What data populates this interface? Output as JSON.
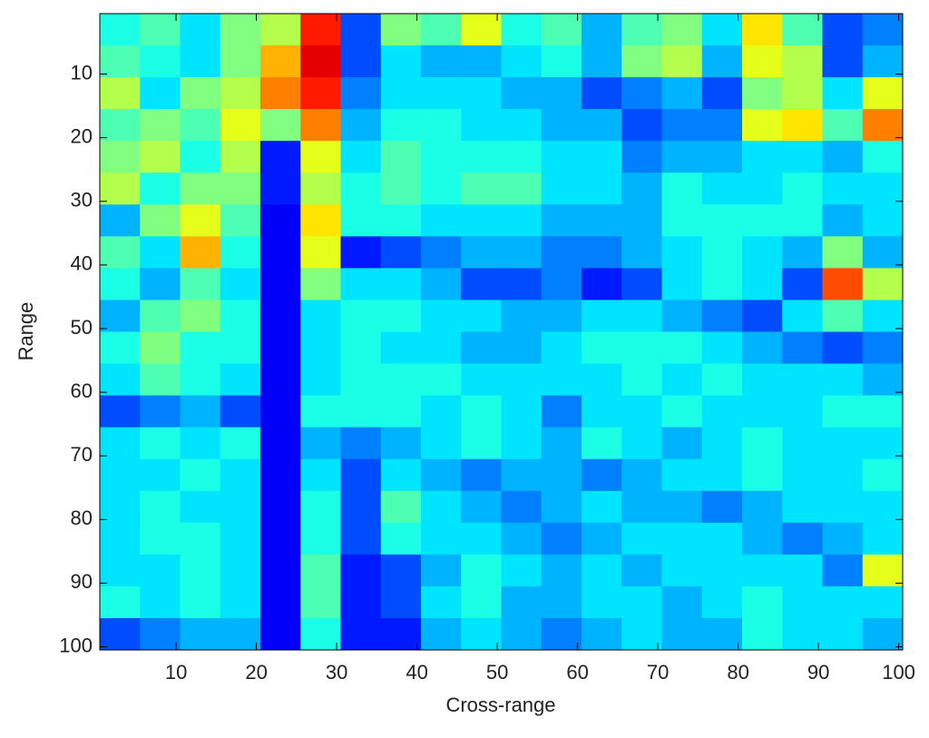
{
  "chart_data": {
    "type": "heatmap",
    "x_label": "Cross-range",
    "y_label": "Range",
    "colormap": "jet",
    "clim": [
      0,
      1
    ],
    "y_reversed": true,
    "xlim": [
      0.5,
      100.5
    ],
    "ylim": [
      0.5,
      100.5
    ],
    "xticks": [
      10,
      20,
      30,
      40,
      50,
      60,
      70,
      80,
      90,
      100
    ],
    "yticks": [
      10,
      20,
      30,
      40,
      50,
      60,
      70,
      80,
      90,
      100
    ],
    "x": [
      3,
      8,
      13,
      18,
      23,
      28,
      33,
      38,
      43,
      48,
      53,
      58,
      63,
      68,
      73,
      78,
      83,
      88,
      93,
      98
    ],
    "y": [
      3,
      8,
      13,
      18,
      23,
      28,
      33,
      38,
      43,
      48,
      53,
      58,
      63,
      68,
      73,
      78,
      83,
      88,
      93,
      98
    ],
    "values": [
      [
        0.4,
        0.45,
        0.35,
        0.5,
        0.55,
        0.85,
        0.2,
        0.5,
        0.45,
        0.6,
        0.4,
        0.45,
        0.3,
        0.45,
        0.5,
        0.35,
        0.65,
        0.45,
        0.2,
        0.25
      ],
      [
        0.45,
        0.4,
        0.35,
        0.5,
        0.7,
        0.9,
        0.2,
        0.35,
        0.3,
        0.3,
        0.35,
        0.4,
        0.3,
        0.5,
        0.55,
        0.3,
        0.6,
        0.55,
        0.2,
        0.3
      ],
      [
        0.55,
        0.35,
        0.5,
        0.55,
        0.75,
        0.85,
        0.25,
        0.35,
        0.35,
        0.35,
        0.3,
        0.3,
        0.2,
        0.25,
        0.3,
        0.2,
        0.5,
        0.55,
        0.35,
        0.6
      ],
      [
        0.45,
        0.5,
        0.45,
        0.6,
        0.5,
        0.75,
        0.3,
        0.4,
        0.4,
        0.35,
        0.35,
        0.3,
        0.3,
        0.2,
        0.25,
        0.25,
        0.6,
        0.65,
        0.45,
        0.75
      ],
      [
        0.5,
        0.55,
        0.4,
        0.55,
        0.15,
        0.6,
        0.35,
        0.45,
        0.4,
        0.4,
        0.4,
        0.35,
        0.35,
        0.25,
        0.3,
        0.3,
        0.35,
        0.35,
        0.3,
        0.4
      ],
      [
        0.55,
        0.4,
        0.5,
        0.5,
        0.15,
        0.55,
        0.4,
        0.45,
        0.4,
        0.45,
        0.45,
        0.35,
        0.35,
        0.3,
        0.4,
        0.35,
        0.35,
        0.4,
        0.35,
        0.35
      ],
      [
        0.3,
        0.5,
        0.6,
        0.45,
        0.12,
        0.65,
        0.4,
        0.4,
        0.35,
        0.35,
        0.35,
        0.3,
        0.3,
        0.3,
        0.4,
        0.4,
        0.4,
        0.4,
        0.3,
        0.35
      ],
      [
        0.45,
        0.35,
        0.7,
        0.4,
        0.12,
        0.6,
        0.15,
        0.2,
        0.25,
        0.3,
        0.3,
        0.25,
        0.25,
        0.3,
        0.35,
        0.4,
        0.35,
        0.3,
        0.5,
        0.3
      ],
      [
        0.4,
        0.3,
        0.45,
        0.35,
        0.12,
        0.5,
        0.35,
        0.35,
        0.3,
        0.2,
        0.2,
        0.25,
        0.15,
        0.2,
        0.35,
        0.4,
        0.35,
        0.2,
        0.8,
        0.55
      ],
      [
        0.3,
        0.45,
        0.5,
        0.4,
        0.12,
        0.35,
        0.4,
        0.4,
        0.35,
        0.35,
        0.3,
        0.3,
        0.35,
        0.35,
        0.3,
        0.25,
        0.2,
        0.35,
        0.45,
        0.35
      ],
      [
        0.4,
        0.5,
        0.4,
        0.4,
        0.12,
        0.35,
        0.4,
        0.35,
        0.35,
        0.3,
        0.3,
        0.35,
        0.4,
        0.4,
        0.4,
        0.35,
        0.3,
        0.25,
        0.2,
        0.25
      ],
      [
        0.35,
        0.45,
        0.4,
        0.35,
        0.12,
        0.35,
        0.4,
        0.4,
        0.4,
        0.35,
        0.35,
        0.35,
        0.35,
        0.4,
        0.35,
        0.4,
        0.35,
        0.35,
        0.35,
        0.3
      ],
      [
        0.2,
        0.25,
        0.3,
        0.2,
        0.12,
        0.4,
        0.4,
        0.4,
        0.35,
        0.4,
        0.35,
        0.25,
        0.35,
        0.35,
        0.4,
        0.35,
        0.35,
        0.35,
        0.4,
        0.4
      ],
      [
        0.35,
        0.4,
        0.35,
        0.4,
        0.12,
        0.3,
        0.25,
        0.3,
        0.35,
        0.4,
        0.35,
        0.3,
        0.4,
        0.35,
        0.3,
        0.35,
        0.4,
        0.35,
        0.35,
        0.35
      ],
      [
        0.35,
        0.35,
        0.4,
        0.35,
        0.12,
        0.35,
        0.2,
        0.35,
        0.3,
        0.25,
        0.3,
        0.3,
        0.25,
        0.3,
        0.35,
        0.35,
        0.4,
        0.35,
        0.35,
        0.4
      ],
      [
        0.35,
        0.4,
        0.35,
        0.35,
        0.12,
        0.4,
        0.2,
        0.45,
        0.35,
        0.3,
        0.25,
        0.3,
        0.35,
        0.3,
        0.3,
        0.25,
        0.3,
        0.35,
        0.35,
        0.35
      ],
      [
        0.35,
        0.4,
        0.4,
        0.35,
        0.12,
        0.4,
        0.2,
        0.4,
        0.35,
        0.35,
        0.3,
        0.25,
        0.3,
        0.35,
        0.35,
        0.35,
        0.3,
        0.25,
        0.3,
        0.35
      ],
      [
        0.35,
        0.35,
        0.4,
        0.35,
        0.12,
        0.45,
        0.15,
        0.2,
        0.3,
        0.4,
        0.35,
        0.3,
        0.35,
        0.3,
        0.35,
        0.35,
        0.35,
        0.35,
        0.25,
        0.6
      ],
      [
        0.4,
        0.35,
        0.4,
        0.35,
        0.12,
        0.45,
        0.15,
        0.2,
        0.35,
        0.4,
        0.3,
        0.3,
        0.35,
        0.35,
        0.3,
        0.35,
        0.4,
        0.35,
        0.35,
        0.35
      ],
      [
        0.2,
        0.25,
        0.3,
        0.3,
        0.12,
        0.4,
        0.15,
        0.15,
        0.3,
        0.35,
        0.3,
        0.25,
        0.3,
        0.35,
        0.3,
        0.3,
        0.4,
        0.35,
        0.35,
        0.3
      ]
    ]
  }
}
